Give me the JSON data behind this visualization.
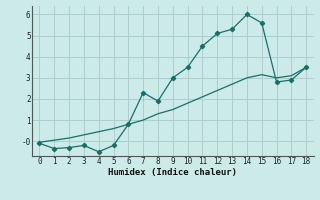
{
  "xlabel": "Humidex (Indice chaleur)",
  "bg_color": "#cceae7",
  "grid_color": "#aacfcc",
  "line_color": "#1a6e6a",
  "x_humidex": [
    0,
    1,
    2,
    3,
    4,
    5,
    6,
    7,
    8,
    9,
    10,
    11,
    12,
    13,
    14,
    15,
    16,
    17,
    18
  ],
  "y_jagged": [
    -0.1,
    -0.35,
    -0.3,
    -0.2,
    -0.5,
    -0.2,
    0.8,
    2.3,
    1.9,
    3.0,
    3.5,
    4.5,
    5.1,
    5.3,
    6.0,
    5.6,
    2.8,
    2.9,
    3.5
  ],
  "y_smooth": [
    -0.05,
    0.05,
    0.15,
    0.3,
    0.45,
    0.6,
    0.8,
    1.0,
    1.3,
    1.5,
    1.8,
    2.1,
    2.4,
    2.7,
    3.0,
    3.15,
    3.0,
    3.1,
    3.5
  ],
  "ylim": [
    -0.7,
    6.4
  ],
  "xlim": [
    -0.5,
    18.5
  ],
  "yticks": [
    0,
    1,
    2,
    3,
    4,
    5,
    6
  ],
  "ytick_labels": [
    "-0",
    "1",
    "2",
    "3",
    "4",
    "5",
    "6"
  ],
  "xticks": [
    0,
    1,
    2,
    3,
    4,
    5,
    6,
    7,
    8,
    9,
    10,
    11,
    12,
    13,
    14,
    15,
    16,
    17,
    18
  ]
}
